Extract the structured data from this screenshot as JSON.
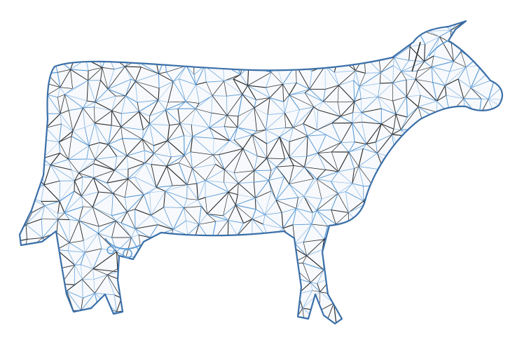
{
  "scene": {
    "subject": "cow",
    "render_style": "triangle-mesh-wireframe",
    "view": "side-profile-facing-right"
  },
  "colors": {
    "background": "#ffffff",
    "mesh_dark": "#2b2b2b",
    "mesh_blue": "#5b9bd5",
    "mesh_light": "#9cc3ea"
  }
}
